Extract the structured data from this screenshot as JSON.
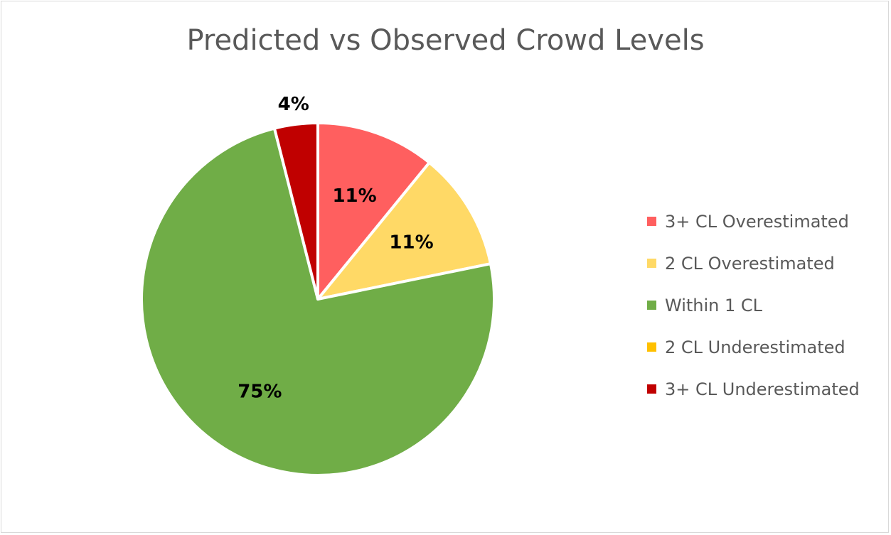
{
  "chart_data": {
    "type": "pie",
    "title": "Predicted vs Observed Crowd Levels",
    "legend_position": "right",
    "slices": [
      {
        "name": "3+ CL Overestimated",
        "value": 11,
        "label": "11%",
        "color": "#ff5f5f"
      },
      {
        "name": "2 CL Overestimated",
        "value": 11,
        "label": "11%",
        "color": "#ffd966"
      },
      {
        "name": "Within 1 CL",
        "value": 75,
        "label": "75%",
        "color": "#70ad47"
      },
      {
        "name": "2 CL Underestimated",
        "value": 0,
        "label": "",
        "color": "#ffc000"
      },
      {
        "name": "3+ CL Underestimated",
        "value": 4,
        "label": "4%",
        "color": "#c00000"
      }
    ]
  }
}
